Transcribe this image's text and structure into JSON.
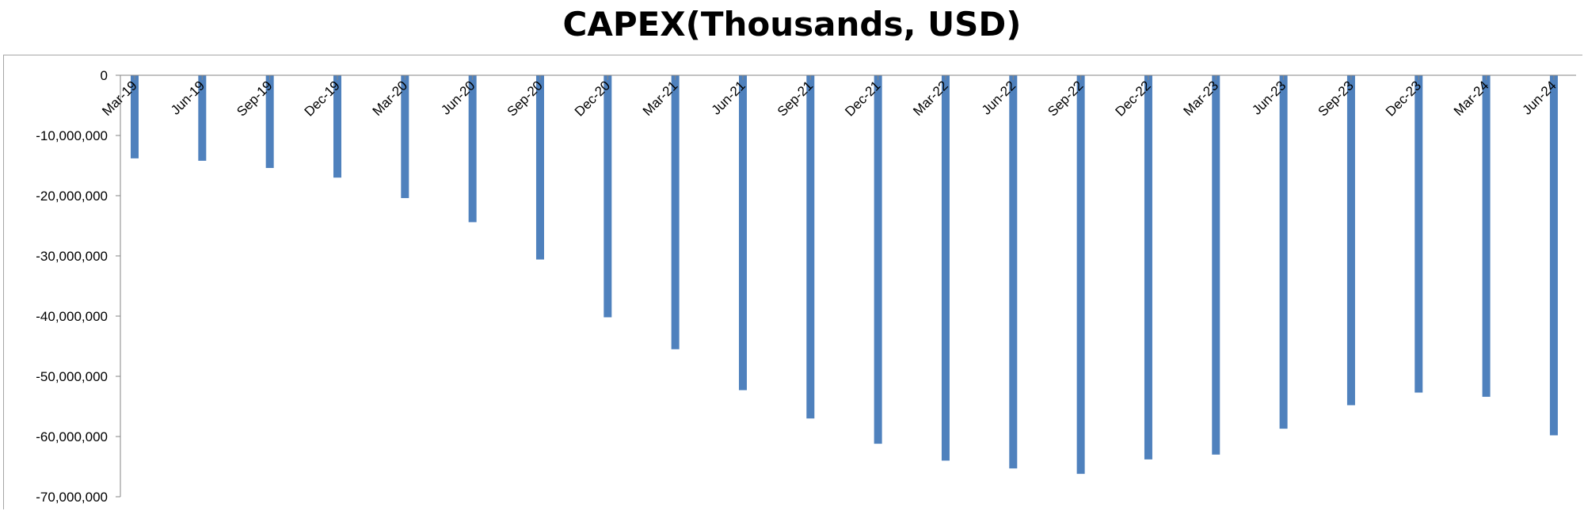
{
  "chart_data": {
    "type": "bar",
    "title": "CAPEX(Thousands, USD)",
    "xlabel": "",
    "ylabel": "",
    "ylim": [
      -70000000,
      0
    ],
    "y_ticks": [
      0,
      -10000000,
      -20000000,
      -30000000,
      -40000000,
      -50000000,
      -60000000,
      -70000000
    ],
    "y_tick_labels": [
      "0",
      "-10,000,000",
      "-20,000,000",
      "-30,000,000",
      "-40,000,000",
      "-50,000,000",
      "-60,000,000",
      "-70,000,000"
    ],
    "categories": [
      "Mar-19",
      "Jun-19",
      "Sep-19",
      "Dec-19",
      "Mar-20",
      "Jun-20",
      "Sep-20",
      "Dec-20",
      "Mar-21",
      "Jun-21",
      "Sep-21",
      "Dec-21",
      "Mar-22",
      "Jun-22",
      "Sep-22",
      "Dec-22",
      "Mar-23",
      "Jun-23",
      "Sep-23",
      "Dec-23",
      "Mar-24",
      "Jun-24"
    ],
    "values": [
      -13800000,
      -14200000,
      -15400000,
      -17000000,
      -20400000,
      -24400000,
      -30600000,
      -40200000,
      -45500000,
      -52300000,
      -57000000,
      -61200000,
      -64000000,
      -65300000,
      -66200000,
      -63800000,
      -63000000,
      -58700000,
      -54800000,
      -52700000,
      -53400000,
      -59800000
    ],
    "bar_color": "#4f81bd",
    "grid": false,
    "legend": "none"
  }
}
